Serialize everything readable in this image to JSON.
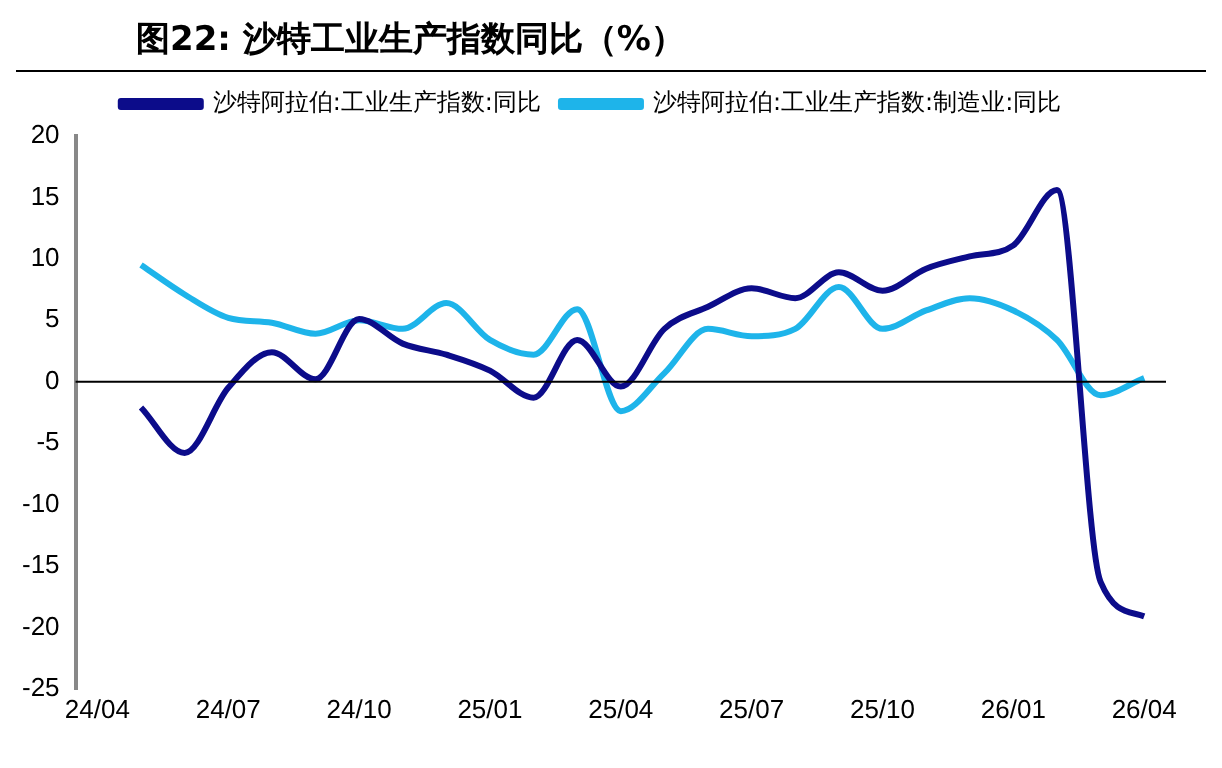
{
  "chart_data": {
    "type": "line",
    "title": "图22:  沙特工业生产指数同比（%）",
    "categories": [
      "24/04",
      null,
      null,
      "24/07",
      null,
      null,
      "24/10",
      null,
      null,
      "25/01",
      null,
      null,
      "25/04",
      null,
      null,
      "25/07",
      null,
      null,
      "25/10",
      null,
      null,
      "26/01",
      null,
      null,
      "26/04"
    ],
    "series": [
      {
        "name": "沙特阿拉伯:工业生产指数:同比",
        "color": "#0c0c8a",
        "values": [
          null,
          -2.1,
          -5.8,
          -0.5,
          2.4,
          0.2,
          5.1,
          3.1,
          2.2,
          0.9,
          -1.3,
          3.4,
          -0.4,
          4.3,
          6.1,
          7.6,
          6.8,
          8.9,
          7.4,
          9.2,
          10.2,
          11.1,
          15.6,
          -16.3,
          -19.1
        ]
      },
      {
        "name": "沙特阿拉伯:工业生产指数:制造业:同比",
        "color": "#1eb4ea",
        "values": [
          null,
          9.5,
          7.1,
          5.2,
          4.8,
          3.9,
          5.0,
          4.3,
          6.4,
          3.4,
          2.2,
          5.9,
          -2.4,
          0.7,
          4.3,
          3.7,
          4.3,
          7.7,
          4.3,
          5.8,
          6.8,
          5.8,
          3.4,
          -1.1,
          0.3
        ]
      }
    ],
    "ylim": [
      -25,
      20
    ],
    "yticks": [
      -25,
      -20,
      -15,
      -10,
      -5,
      0,
      5,
      10,
      15,
      20
    ],
    "legend": "top",
    "grid": false,
    "ref_lines": [
      {
        "axis": "y",
        "value": 0,
        "color": "#000000"
      }
    ]
  }
}
